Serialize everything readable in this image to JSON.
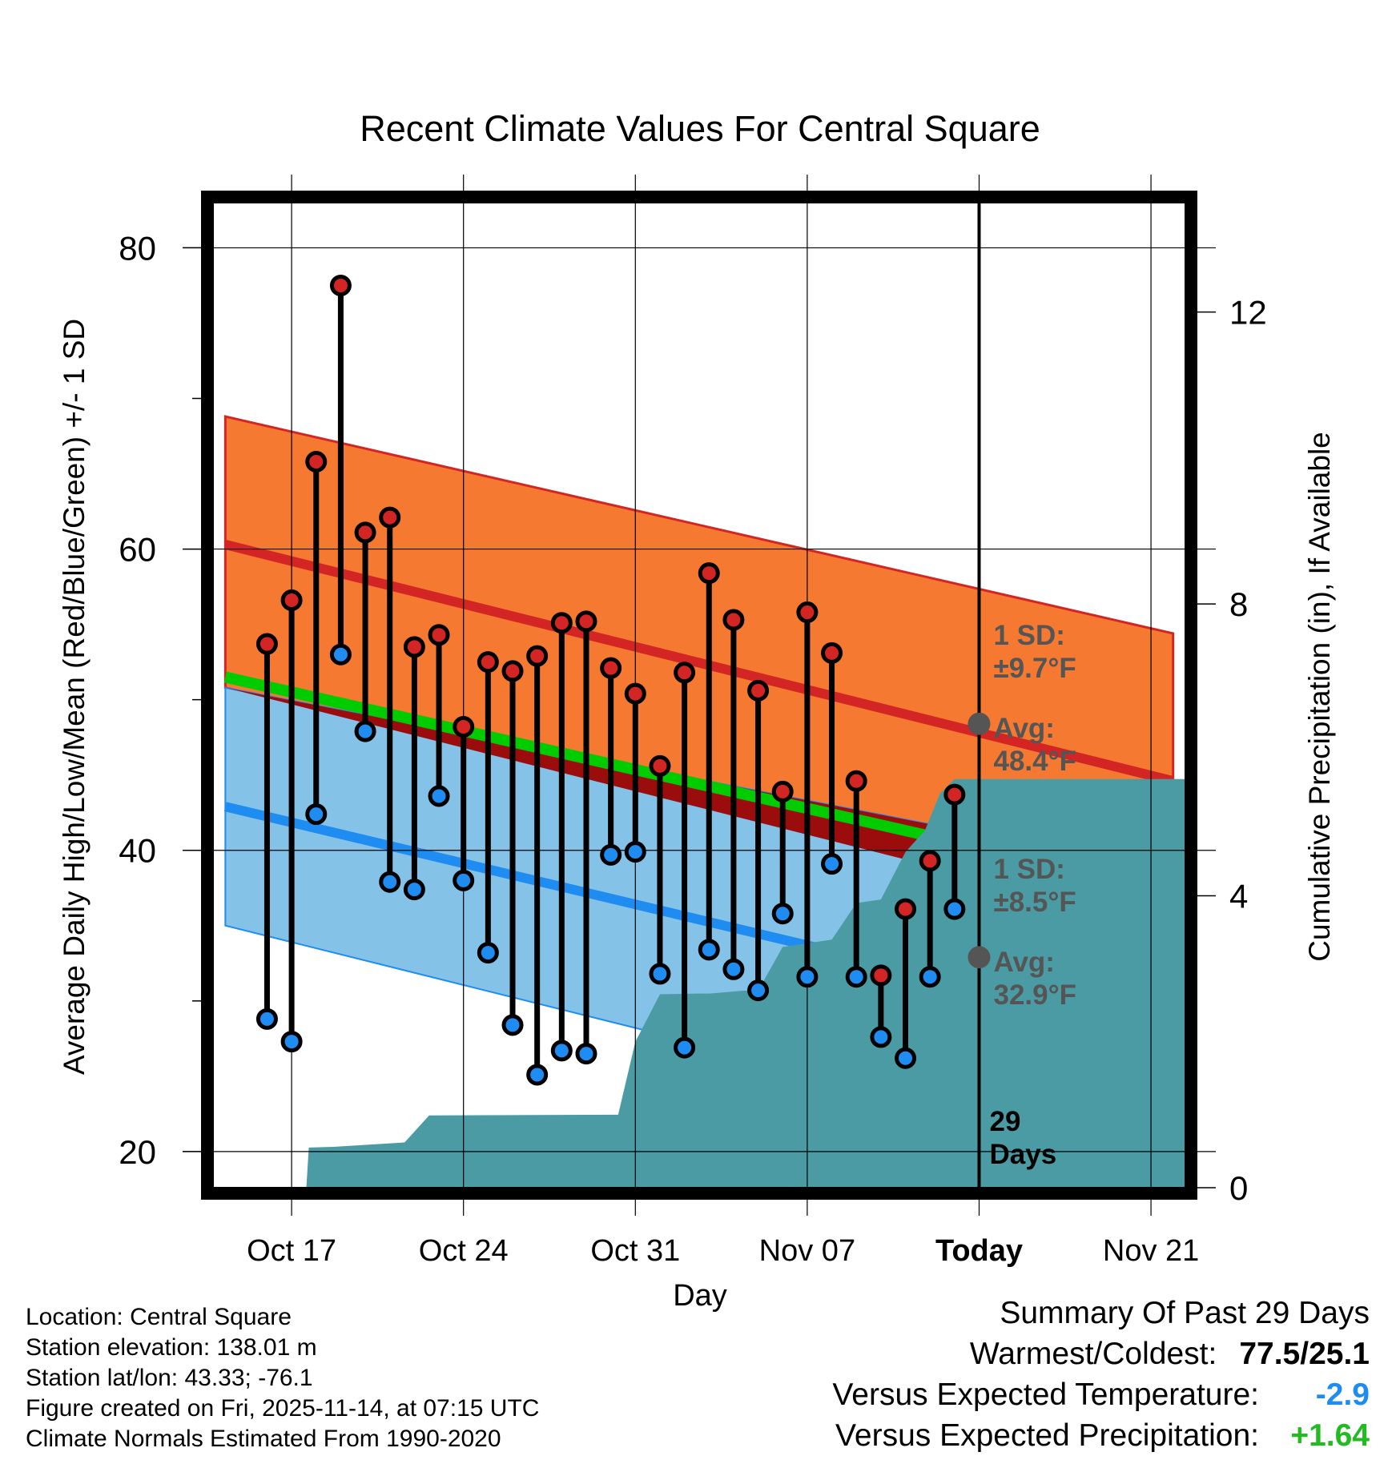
{
  "chart_data": {
    "type": "climate-range",
    "title": "Recent Climate Values For Central Square",
    "xlabel": "Day",
    "ylabel_left": "Average Daily High/Low/Mean (Red/Blue/Green) +/- 1 SD",
    "ylabel_right": "Cumulative Precipitation (in), If Available",
    "x_domain": [
      -3.2,
      36.4
    ],
    "ylim_left": [
      17.6,
      83
    ],
    "ylim_right": [
      0,
      13.5
    ],
    "y_ticks_left": [
      20,
      40,
      60,
      80
    ],
    "y_ticks_right": [
      0,
      4,
      8,
      12
    ],
    "x_ticks": [
      {
        "day": 0,
        "label": "Oct 17",
        "bold": false
      },
      {
        "day": 7,
        "label": "Oct 24",
        "bold": false
      },
      {
        "day": 14,
        "label": "Oct 31",
        "bold": false
      },
      {
        "day": 21,
        "label": "Nov 07",
        "bold": false
      },
      {
        "day": 28,
        "label": "Today",
        "bold": true
      },
      {
        "day": 35,
        "label": "Nov 21",
        "bold": false
      }
    ],
    "today_day": 28,
    "normals": {
      "x": [
        -2.7,
        35.9
      ],
      "high_mean": [
        60.3,
        44.6
      ],
      "high_upper": [
        68.8,
        54.4
      ],
      "high_lower": [
        50.8,
        34.9
      ],
      "mean": [
        51.5,
        37.3
      ],
      "low_mean": [
        42.9,
        27.9
      ],
      "low_upper": [
        50.8,
        38.6
      ],
      "low_lower": [
        35.0,
        19.3
      ]
    },
    "observations": {
      "days": [
        -1,
        0,
        1,
        2,
        3,
        4,
        5,
        6,
        7,
        8,
        9,
        10,
        11,
        12,
        13,
        14,
        15,
        16,
        17,
        18,
        19,
        20,
        21,
        22,
        23,
        24,
        25,
        26,
        27
      ],
      "high": [
        53.7,
        56.6,
        65.8,
        77.5,
        61.1,
        62.1,
        53.5,
        54.3,
        48.2,
        52.5,
        51.9,
        52.9,
        55.1,
        55.2,
        52.1,
        50.4,
        45.6,
        51.8,
        58.4,
        55.3,
        50.6,
        43.9,
        55.8,
        53.1,
        44.6,
        31.7,
        36.1,
        39.3,
        43.7
      ],
      "low": [
        28.8,
        27.3,
        42.4,
        53.0,
        47.9,
        37.9,
        37.4,
        43.6,
        38.0,
        33.2,
        28.4,
        25.1,
        26.7,
        26.5,
        39.7,
        39.9,
        31.8,
        26.9,
        33.4,
        32.1,
        30.7,
        35.8,
        31.6,
        39.1,
        31.6,
        27.6,
        26.2,
        31.6,
        36.1
      ]
    },
    "precipitation": {
      "x": [
        0.6,
        0.7,
        1.7,
        4.6,
        5.6,
        13.3,
        14.0,
        15.0,
        16.5,
        17.0,
        18.4,
        19.0,
        20.0,
        21.0,
        22.0,
        23.0,
        24.0,
        25.0,
        25.8,
        26.4,
        27.0,
        36.4
      ],
      "y": [
        0,
        0.55,
        0.56,
        0.62,
        0.99,
        1.0,
        2.0,
        2.65,
        2.66,
        2.66,
        2.7,
        2.7,
        3.3,
        3.35,
        3.4,
        3.9,
        3.95,
        4.6,
        4.9,
        5.4,
        5.6,
        5.6
      ]
    },
    "annotations": {
      "high_sd_line1": "1 SD:",
      "high_sd_line2": "±9.7°F",
      "high_avg_line1": "Avg:",
      "high_avg_line2": "48.4°F",
      "low_sd_line1": "1 SD:",
      "low_sd_line2": "±8.5°F",
      "low_avg_line1": "Avg:",
      "low_avg_line2": "32.9°F",
      "days_line1": "29",
      "days_line2": "Days",
      "today_high_avg": 48.4,
      "today_low_avg": 32.9
    },
    "colors": {
      "high_band": "#f57930",
      "high_line": "#d42525",
      "low_band": "#85c2e8",
      "low_line": "#1e8cf0",
      "mean_line": "#00cc00",
      "overlap": "#9b0d0d",
      "precip": "#4a9ba4",
      "high_dot": "#d42525",
      "low_dot": "#1e8cf0",
      "annotation": "#555555"
    }
  },
  "footer": {
    "location": "Location: Central Square",
    "elevation": "Station elevation: 138.01 m",
    "latlon": "Station lat/lon: 43.33; -76.1",
    "created": "Figure created on Fri, 2025-11-14, at 07:15 UTC",
    "normals": "Climate Normals Estimated From 1990-2020"
  },
  "summary": {
    "title": "Summary Of Past 29 Days",
    "warmest_label": "Warmest/Coldest:",
    "warmest_value": "77.5/25.1",
    "temp_label": "Versus Expected Temperature:",
    "temp_value": "-2.9",
    "temp_color": "#1e8cf0",
    "precip_label": "Versus Expected Precipitation:",
    "precip_value": "+1.64",
    "precip_color": "#22bb22"
  }
}
